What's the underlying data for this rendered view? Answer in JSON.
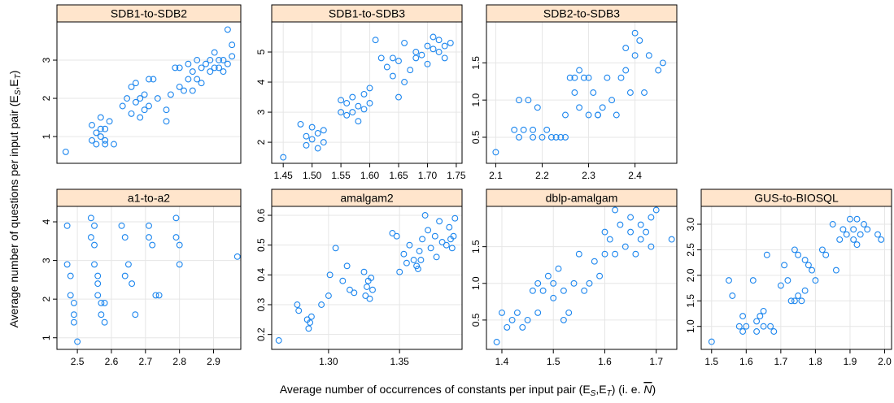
{
  "y_label": "Average number of questions per input pair (E",
  "y_label_sub1": "S",
  "y_label_mid": ",E",
  "y_label_sub2": "T",
  "y_label_end": ")",
  "x_label": "Average number of occurrences of constants per input pair (E",
  "x_label_sub1": "S",
  "x_label_mid": ",E",
  "x_label_sub2": "T",
  "x_label_end": ") (i. e. ",
  "x_label_nbar": "N",
  "x_label_close": ")",
  "colors": {
    "point": "#1c86ee",
    "strip": "#ffe5cc",
    "grid": "#e6e6e6",
    "axis": "#000000"
  },
  "chart_data": [
    {
      "type": "scatter",
      "title": "SDB1-to-SDB2",
      "xlim": [
        1.45,
        1.87
      ],
      "ylim": [
        0.3,
        4.0
      ],
      "xticks": [],
      "yticks": [
        1,
        2,
        3
      ],
      "ytick_labels": [
        "1",
        "2",
        "3"
      ],
      "x": [
        1.47,
        1.53,
        1.53,
        1.54,
        1.54,
        1.55,
        1.55,
        1.55,
        1.56,
        1.56,
        1.56,
        1.57,
        1.58,
        1.6,
        1.61,
        1.62,
        1.62,
        1.63,
        1.63,
        1.64,
        1.64,
        1.65,
        1.65,
        1.66,
        1.66,
        1.67,
        1.68,
        1.7,
        1.7,
        1.71,
        1.72,
        1.73,
        1.73,
        1.74,
        1.75,
        1.75,
        1.76,
        1.76,
        1.77,
        1.77,
        1.78,
        1.78,
        1.79,
        1.8,
        1.8,
        1.81,
        1.81,
        1.82,
        1.82,
        1.83,
        1.83,
        1.84,
        1.84,
        1.85,
        1.85
      ],
      "y": [
        0.6,
        0.9,
        1.3,
        1.1,
        0.8,
        1.2,
        1.5,
        1.0,
        1.2,
        0.9,
        0.8,
        1.4,
        0.8,
        1.8,
        2.0,
        1.6,
        2.3,
        1.9,
        2.4,
        1.5,
        2.0,
        1.7,
        2.1,
        1.8,
        2.5,
        2.5,
        2.0,
        1.4,
        1.7,
        2.1,
        2.8,
        2.3,
        2.8,
        2.2,
        2.5,
        2.9,
        2.2,
        2.7,
        2.5,
        3.0,
        2.8,
        2.4,
        2.9,
        2.7,
        3.0,
        2.8,
        3.2,
        2.8,
        3.0,
        2.7,
        3.0,
        3.8,
        2.9,
        3.4,
        3.1
      ]
    },
    {
      "type": "scatter",
      "title": "SDB1-to-SDB3",
      "xlim": [
        1.43,
        1.76
      ],
      "ylim": [
        1.3,
        6.0
      ],
      "xticks": [
        1.45,
        1.5,
        1.55,
        1.6,
        1.65,
        1.7,
        1.75
      ],
      "xtick_labels": [
        "1.45",
        "1.50",
        "1.55",
        "1.60",
        "1.65",
        "1.70",
        "1.75"
      ],
      "yticks": [
        2,
        3,
        4,
        5
      ],
      "ytick_labels": [
        "2",
        "3",
        "4",
        "5"
      ],
      "x": [
        1.45,
        1.48,
        1.49,
        1.49,
        1.5,
        1.5,
        1.51,
        1.51,
        1.52,
        1.52,
        1.55,
        1.55,
        1.56,
        1.56,
        1.57,
        1.57,
        1.58,
        1.58,
        1.59,
        1.59,
        1.6,
        1.6,
        1.61,
        1.62,
        1.63,
        1.64,
        1.64,
        1.65,
        1.65,
        1.66,
        1.66,
        1.67,
        1.68,
        1.68,
        1.69,
        1.7,
        1.7,
        1.71,
        1.71,
        1.72,
        1.72,
        1.73,
        1.73,
        1.74
      ],
      "y": [
        1.5,
        2.6,
        2.2,
        1.9,
        2.1,
        2.5,
        2.3,
        1.8,
        2.0,
        2.4,
        3.0,
        3.4,
        3.3,
        2.9,
        3.5,
        3.0,
        3.2,
        2.7,
        3.6,
        3.1,
        3.3,
        3.8,
        5.4,
        4.8,
        4.5,
        4.2,
        4.8,
        3.5,
        4.7,
        4.0,
        5.3,
        4.4,
        4.8,
        5.0,
        4.9,
        5.2,
        4.6,
        5.1,
        5.5,
        5.0,
        5.4,
        5.2,
        4.8,
        5.3
      ]
    },
    {
      "type": "scatter",
      "title": "SDB2-to-SDB3",
      "xlim": [
        2.08,
        2.49
      ],
      "ylim": [
        0.15,
        2.05
      ],
      "xticks": [
        2.1,
        2.2,
        2.3,
        2.4
      ],
      "xtick_labels": [
        "2.1",
        "2.2",
        "2.3",
        "2.4"
      ],
      "yticks": [
        0.5,
        1.0,
        1.5
      ],
      "ytick_labels": [
        "0.5",
        "1.0",
        "1.5"
      ],
      "x": [
        2.1,
        2.14,
        2.15,
        2.15,
        2.16,
        2.17,
        2.18,
        2.18,
        2.19,
        2.2,
        2.21,
        2.22,
        2.23,
        2.24,
        2.25,
        2.25,
        2.26,
        2.27,
        2.27,
        2.28,
        2.28,
        2.29,
        2.3,
        2.3,
        2.31,
        2.32,
        2.32,
        2.33,
        2.34,
        2.35,
        2.36,
        2.37,
        2.38,
        2.38,
        2.39,
        2.4,
        2.4,
        2.41,
        2.42,
        2.43,
        2.45,
        2.46
      ],
      "y": [
        0.3,
        0.6,
        1.0,
        0.5,
        0.6,
        1.0,
        0.5,
        0.6,
        0.9,
        0.5,
        0.6,
        0.5,
        0.5,
        0.5,
        0.5,
        0.8,
        1.3,
        1.1,
        1.3,
        1.4,
        0.9,
        1.3,
        0.8,
        1.3,
        1.1,
        0.8,
        0.8,
        0.9,
        1.3,
        1.0,
        0.8,
        1.3,
        1.7,
        1.4,
        1.1,
        1.9,
        1.6,
        1.8,
        1.1,
        1.6,
        1.4,
        1.5
      ]
    },
    {
      "type": "scatter",
      "title": "a1-to-a2",
      "xlim": [
        2.44,
        2.98
      ],
      "ylim": [
        0.7,
        4.4
      ],
      "xticks": [
        2.5,
        2.6,
        2.7,
        2.8,
        2.9
      ],
      "xtick_labels": [
        "2.5",
        "2.6",
        "2.7",
        "2.8",
        "2.9"
      ],
      "yticks": [
        1,
        2,
        3,
        4
      ],
      "ytick_labels": [
        "1",
        "2",
        "3",
        "4"
      ],
      "x": [
        2.47,
        2.47,
        2.48,
        2.48,
        2.49,
        2.49,
        2.49,
        2.5,
        2.54,
        2.54,
        2.55,
        2.55,
        2.55,
        2.56,
        2.56,
        2.56,
        2.57,
        2.57,
        2.58,
        2.58,
        2.63,
        2.64,
        2.64,
        2.65,
        2.66,
        2.67,
        2.71,
        2.71,
        2.72,
        2.73,
        2.74,
        2.79,
        2.79,
        2.8,
        2.8,
        2.97
      ],
      "y": [
        3.9,
        2.9,
        2.6,
        2.1,
        1.9,
        1.6,
        1.4,
        0.9,
        4.1,
        3.6,
        3.9,
        3.4,
        2.9,
        2.6,
        2.4,
        2.1,
        1.9,
        1.6,
        1.4,
        1.9,
        3.9,
        3.6,
        2.6,
        2.9,
        2.4,
        1.6,
        3.9,
        3.6,
        3.4,
        2.1,
        2.1,
        4.1,
        3.6,
        3.4,
        2.9,
        3.1
      ]
    },
    {
      "type": "scatter",
      "title": "amalgam2",
      "xlim": [
        1.26,
        1.394
      ],
      "ylim": [
        0.15,
        0.63
      ],
      "xticks": [
        1.3,
        1.35
      ],
      "xtick_labels": [
        "1.30",
        "1.35"
      ],
      "yticks": [
        0.2,
        0.3,
        0.4,
        0.5,
        0.6
      ],
      "ytick_labels": [
        "0.2",
        "0.3",
        "0.4",
        "0.5",
        "0.6"
      ],
      "x": [
        1.265,
        1.278,
        1.279,
        1.285,
        1.286,
        1.287,
        1.288,
        1.295,
        1.3,
        1.301,
        1.305,
        1.31,
        1.313,
        1.315,
        1.318,
        1.325,
        1.326,
        1.327,
        1.328,
        1.329,
        1.33,
        1.331,
        1.345,
        1.348,
        1.35,
        1.353,
        1.355,
        1.357,
        1.36,
        1.362,
        1.363,
        1.364,
        1.365,
        1.366,
        1.368,
        1.37,
        1.372,
        1.375,
        1.376,
        1.378,
        1.38,
        1.383,
        1.385,
        1.386,
        1.387,
        1.388,
        1.389
      ],
      "y": [
        0.18,
        0.3,
        0.28,
        0.25,
        0.22,
        0.24,
        0.26,
        0.3,
        0.33,
        0.4,
        0.49,
        0.38,
        0.43,
        0.35,
        0.34,
        0.41,
        0.33,
        0.36,
        0.38,
        0.32,
        0.39,
        0.35,
        0.54,
        0.53,
        0.41,
        0.47,
        0.44,
        0.5,
        0.45,
        0.43,
        0.42,
        0.48,
        0.45,
        0.52,
        0.6,
        0.55,
        0.49,
        0.53,
        0.46,
        0.58,
        0.51,
        0.5,
        0.56,
        0.52,
        0.49,
        0.53,
        0.59
      ]
    },
    {
      "type": "scatter",
      "title": "dblp-amalgam",
      "xlim": [
        1.37,
        1.74
      ],
      "ylim": [
        0.1,
        2.05
      ],
      "xticks": [
        1.4,
        1.5,
        1.6,
        1.7
      ],
      "xtick_labels": [
        "1.4",
        "1.5",
        "1.6",
        "1.7"
      ],
      "yticks": [
        0.5,
        1.0,
        1.5
      ],
      "ytick_labels": [
        "0.5",
        "1.0",
        "1.5"
      ],
      "x": [
        1.39,
        1.4,
        1.41,
        1.42,
        1.43,
        1.44,
        1.45,
        1.46,
        1.47,
        1.47,
        1.48,
        1.49,
        1.5,
        1.5,
        1.51,
        1.52,
        1.52,
        1.53,
        1.54,
        1.55,
        1.56,
        1.57,
        1.58,
        1.59,
        1.6,
        1.6,
        1.61,
        1.62,
        1.62,
        1.63,
        1.64,
        1.65,
        1.65,
        1.66,
        1.67,
        1.67,
        1.68,
        1.69,
        1.69,
        1.7,
        1.73
      ],
      "y": [
        0.2,
        0.6,
        0.4,
        0.5,
        0.6,
        0.4,
        0.5,
        0.9,
        0.6,
        1.0,
        0.9,
        1.1,
        0.8,
        1.0,
        1.2,
        0.9,
        0.5,
        0.6,
        1.0,
        1.4,
        0.9,
        1.0,
        1.3,
        1.1,
        1.4,
        1.7,
        1.6,
        2.0,
        1.4,
        1.8,
        1.5,
        1.7,
        1.9,
        1.4,
        1.6,
        1.8,
        1.7,
        1.9,
        1.5,
        2.0,
        1.6
      ]
    },
    {
      "type": "scatter",
      "title": "GUS-to-BIOSQL",
      "xlim": [
        1.47,
        2.02
      ],
      "ylim": [
        0.55,
        3.35
      ],
      "xticks": [
        1.5,
        1.6,
        1.7,
        1.8,
        1.9,
        2.0
      ],
      "xtick_labels": [
        "1.5",
        "1.6",
        "1.7",
        "1.8",
        "1.9",
        "2.0"
      ],
      "yticks": [
        1.0,
        1.5,
        2.0,
        2.5,
        3.0
      ],
      "ytick_labels": [
        "1.0",
        "1.5",
        "2.0",
        "2.5",
        "3.0"
      ],
      "x": [
        1.5,
        1.55,
        1.56,
        1.58,
        1.59,
        1.59,
        1.6,
        1.62,
        1.63,
        1.63,
        1.64,
        1.65,
        1.65,
        1.66,
        1.67,
        1.68,
        1.7,
        1.71,
        1.72,
        1.73,
        1.74,
        1.74,
        1.75,
        1.75,
        1.76,
        1.77,
        1.77,
        1.78,
        1.79,
        1.8,
        1.82,
        1.83,
        1.85,
        1.86,
        1.87,
        1.88,
        1.89,
        1.9,
        1.91,
        1.91,
        1.92,
        1.92,
        1.93,
        1.94,
        1.95,
        1.98,
        1.99
      ],
      "y": [
        0.7,
        1.9,
        1.6,
        1.0,
        1.2,
        0.9,
        1.0,
        1.9,
        0.9,
        1.1,
        1.2,
        1.3,
        1.0,
        2.4,
        1.0,
        0.9,
        1.8,
        2.2,
        1.9,
        1.5,
        2.5,
        1.5,
        2.4,
        1.6,
        1.5,
        2.3,
        1.7,
        2.2,
        2.1,
        1.9,
        2.5,
        2.4,
        3.0,
        2.1,
        2.7,
        2.9,
        2.8,
        3.1,
        2.7,
        2.9,
        3.1,
        2.6,
        2.8,
        3.0,
        2.9,
        2.8,
        2.7
      ]
    }
  ]
}
